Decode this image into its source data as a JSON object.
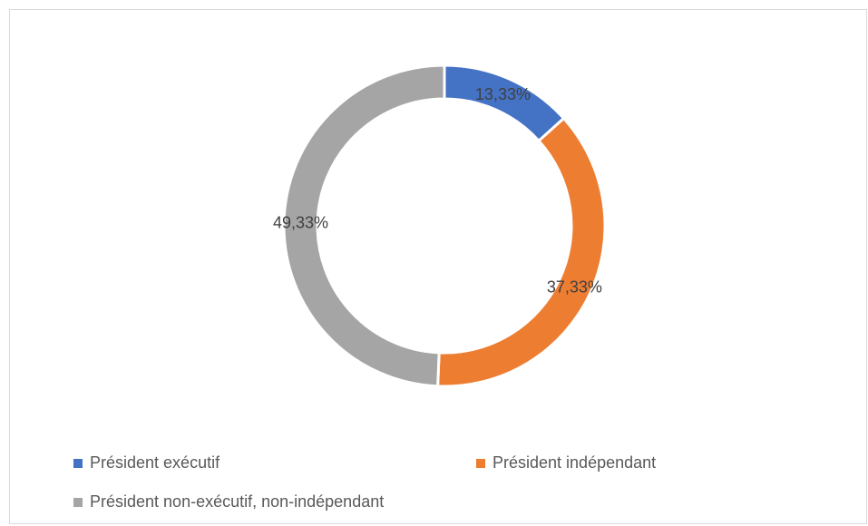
{
  "chart_data": {
    "type": "pie",
    "subtype": "donut",
    "title": "",
    "legend_position": "bottom",
    "slices": [
      {
        "label": "Président exécutif",
        "value": 13.33,
        "value_label": "13,33%",
        "color": "#4472c4"
      },
      {
        "label": "Président indépendant",
        "value": 37.33,
        "value_label": "37,33%",
        "color": "#ed7d31"
      },
      {
        "label": "Président non-exécutif, non-indépendant",
        "value": 49.33,
        "value_label": "49,33%",
        "color": "#a5a5a5"
      }
    ]
  }
}
